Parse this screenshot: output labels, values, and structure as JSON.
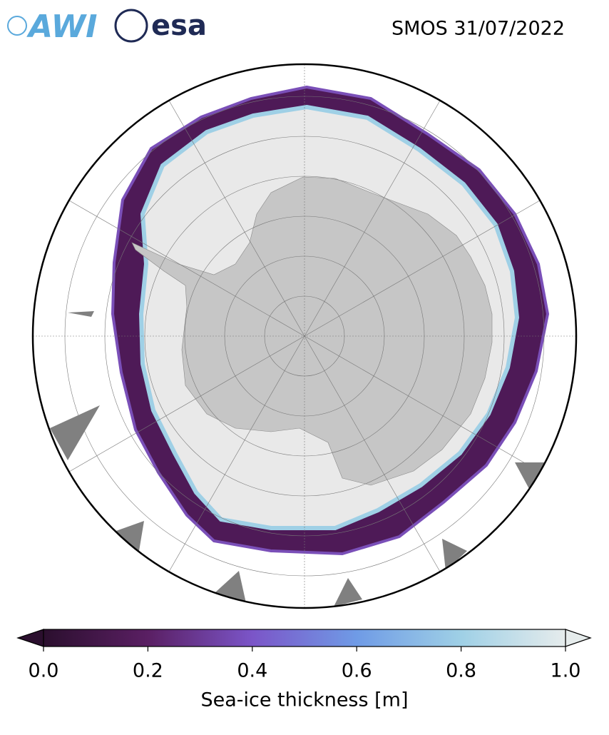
{
  "header": {
    "logos": [
      "AWI",
      "esa"
    ],
    "title": "SMOS 31/07/2022"
  },
  "colorbar": {
    "label": "Sea-ice thickness [m]",
    "lim": [
      0,
      1
    ],
    "ticks": [
      {
        "value": 0,
        "label": "0.0"
      },
      {
        "value": 0.2,
        "label": "0.2"
      },
      {
        "value": 0.4,
        "label": "0.4"
      },
      {
        "value": 0.6,
        "label": "0.6"
      },
      {
        "value": 0.8,
        "label": "0.8"
      },
      {
        "value": 1,
        "label": "1.0"
      }
    ],
    "colors": [
      "#2b0f2e",
      "#5a1f63",
      "#7b55c8",
      "#6f9be6",
      "#9fd0e6",
      "#e6ecec"
    ]
  }
}
